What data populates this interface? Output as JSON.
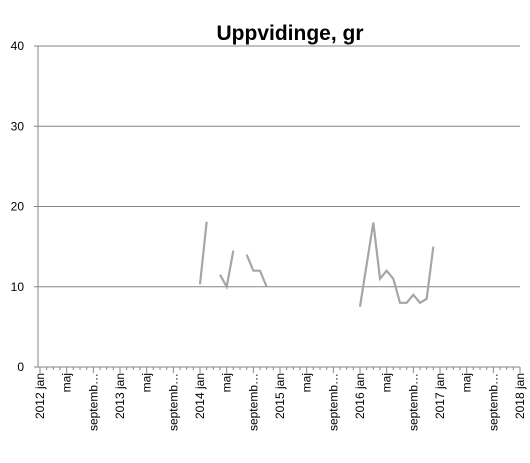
{
  "chart_data": {
    "type": "line",
    "title": "Uppvidinge, gr",
    "categories": [
      "2012 jan",
      null,
      null,
      null,
      "maj",
      null,
      null,
      null,
      "septemb…",
      null,
      null,
      null,
      "2013 jan",
      null,
      null,
      null,
      "maj",
      null,
      null,
      null,
      "septemb…",
      null,
      null,
      null,
      "2014 jan",
      null,
      null,
      null,
      "maj",
      null,
      null,
      null,
      "septemb…",
      null,
      null,
      null,
      "2015 jan",
      null,
      null,
      null,
      "maj",
      null,
      null,
      null,
      "septemb…",
      null,
      null,
      null,
      "2016 jan",
      null,
      null,
      null,
      "maj",
      null,
      null,
      null,
      "septemb…",
      null,
      null,
      null,
      "2017 jan",
      null,
      null,
      null,
      "maj",
      null,
      null,
      null,
      "septemb…",
      null,
      null,
      null,
      "2018 jan"
    ],
    "series": [
      {
        "name": "Uppvidinge, gr",
        "color": "#a6a6a6",
        "values": [
          null,
          null,
          null,
          null,
          null,
          null,
          null,
          null,
          null,
          null,
          null,
          null,
          null,
          null,
          null,
          null,
          null,
          null,
          null,
          null,
          null,
          null,
          null,
          null,
          10.3,
          18.1,
          null,
          11.5,
          10,
          14.5,
          null,
          14,
          12,
          12,
          10,
          null,
          null,
          null,
          null,
          null,
          null,
          null,
          null,
          null,
          null,
          null,
          null,
          null,
          7.5,
          12.8,
          18,
          11,
          12,
          11,
          8,
          8,
          9,
          8,
          8.5,
          15,
          null,
          null,
          null,
          null,
          null,
          null,
          null,
          null,
          null,
          null,
          null,
          null,
          null
        ]
      }
    ],
    "ylim": [
      0,
      40
    ],
    "yticks": [
      0,
      10,
      20,
      30,
      40
    ],
    "grid": true
  }
}
